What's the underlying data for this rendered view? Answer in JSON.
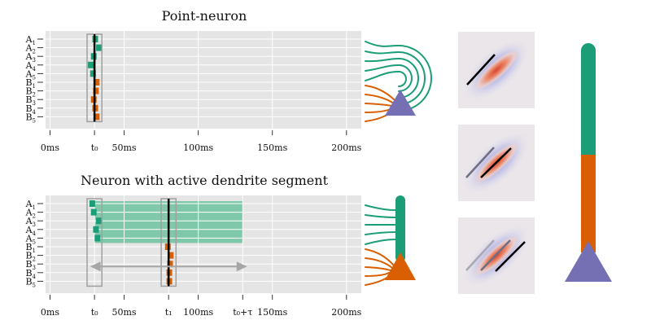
{
  "colors": {
    "panel_bg": "#e5e5e5",
    "grid": "#ffffff",
    "group_a": "#1b9e77",
    "group_b": "#d95f02",
    "soma": "#7570b3",
    "window_fill": "#7fc8a9",
    "arrow": "#a6a6a6",
    "box": "#a0a0a0"
  },
  "top_panel": {
    "title": "Point-neuron",
    "row_labels": [
      {
        "base": "A",
        "sub": "1"
      },
      {
        "base": "A",
        "sub": "2"
      },
      {
        "base": "A",
        "sub": "3"
      },
      {
        "base": "A",
        "sub": "4"
      },
      {
        "base": "A",
        "sub": "5"
      },
      {
        "base": "B",
        "sub": "1"
      },
      {
        "base": "B",
        "sub": "2"
      },
      {
        "base": "B",
        "sub": "3"
      },
      {
        "base": "B",
        "sub": "4"
      },
      {
        "base": "B",
        "sub": "5"
      }
    ],
    "x_range_ms": [
      -3,
      210
    ],
    "ticks": [
      {
        "value": 0,
        "label": "0ms"
      },
      {
        "value": 30,
        "label": "t₀"
      },
      {
        "value": 50,
        "label": "50ms"
      },
      {
        "value": 100,
        "label": "100ms"
      },
      {
        "value": 150,
        "label": "150ms"
      },
      {
        "value": 200,
        "label": "200ms"
      }
    ],
    "spike_times_ms": [
      30.5,
      33,
      29.5,
      27.5,
      29,
      31.5,
      31,
      29.5,
      30.5,
      31.5
    ],
    "event_line_ms": 30,
    "box_range_ms": [
      25,
      35
    ]
  },
  "bottom_panel": {
    "title": "Neuron with active dendrite segment",
    "row_labels": [
      {
        "base": "A",
        "sub": "1"
      },
      {
        "base": "A",
        "sub": "2"
      },
      {
        "base": "A",
        "sub": "3"
      },
      {
        "base": "A",
        "sub": "4"
      },
      {
        "base": "A",
        "sub": "5"
      },
      {
        "base": "B",
        "sub": "1"
      },
      {
        "base": "B",
        "sub": "2"
      },
      {
        "base": "B",
        "sub": "3"
      },
      {
        "base": "B",
        "sub": "4"
      },
      {
        "base": "B",
        "sub": "5"
      }
    ],
    "x_range_ms": [
      -3,
      210
    ],
    "ticks": [
      {
        "value": 0,
        "label": "0ms"
      },
      {
        "value": 30,
        "label": "t₀"
      },
      {
        "value": 50,
        "label": "50ms"
      },
      {
        "value": 80,
        "label": "t₁"
      },
      {
        "value": 100,
        "label": "100ms"
      },
      {
        "value": 130,
        "label": "t₀+τ"
      },
      {
        "value": 150,
        "label": "150ms"
      },
      {
        "value": 200,
        "label": "200ms"
      }
    ],
    "spike_times_ms": [
      28.5,
      29.5,
      33,
      31,
      32,
      79.5,
      81.5,
      81,
      80.5,
      80.5
    ],
    "event_line_ms": 80,
    "box_a_ms": [
      25,
      35
    ],
    "box_b_ms": [
      75,
      85
    ],
    "active_window_ms": [
      30,
      130
    ],
    "arrow_range_ms": [
      27,
      133
    ]
  }
}
